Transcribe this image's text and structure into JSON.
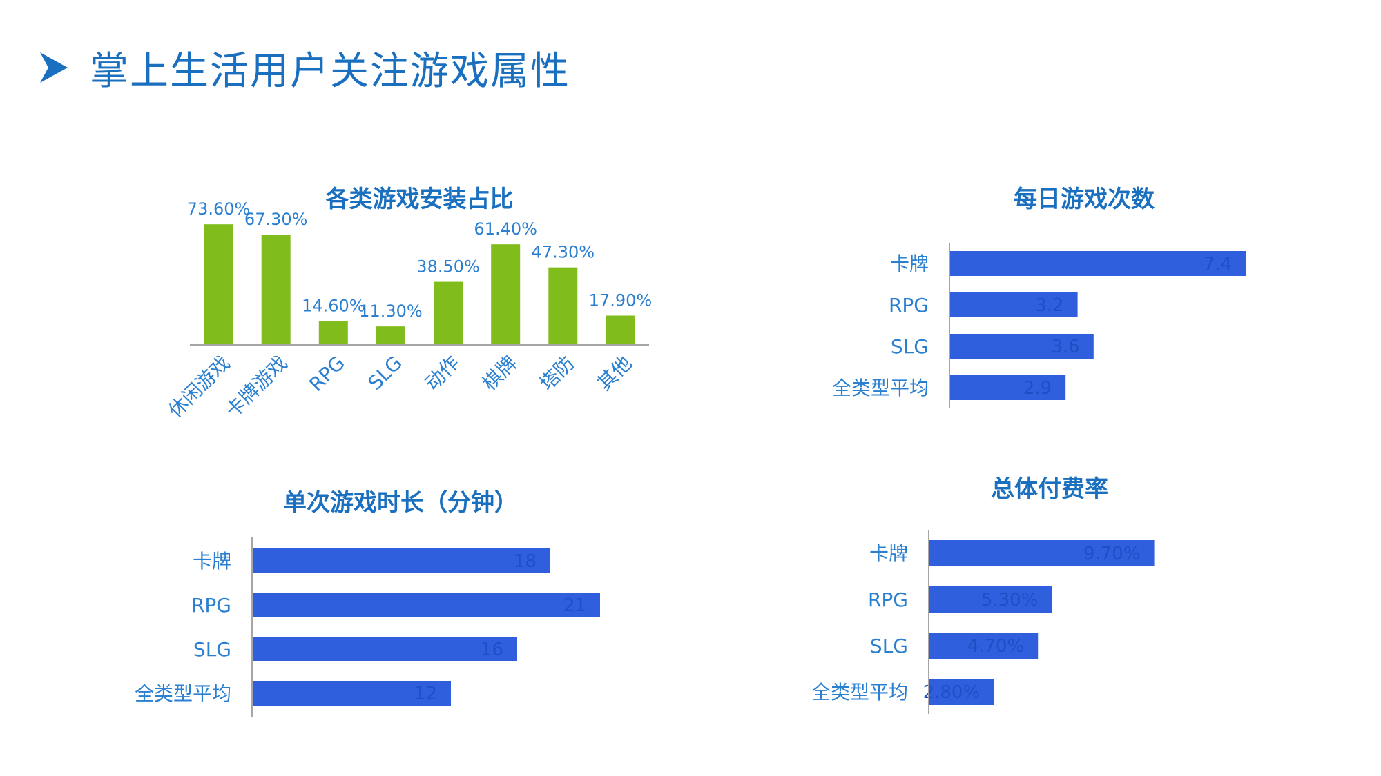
{
  "page": {
    "title": "掌上生活用户关注游戏属性"
  },
  "colors": {
    "title": "#1a6fbf",
    "green_bar": "#80bc1c",
    "blue_bar": "#2f5fdc",
    "axis": "#a6a6a6",
    "label": "#2a7fd0",
    "inner_label": "#1f4fc7"
  },
  "chart_data": [
    {
      "id": "install",
      "type": "bar",
      "title": "各类游戏安装占比",
      "categories": [
        "休闲游戏",
        "卡牌游戏",
        "RPG",
        "SLG",
        "动作",
        "棋牌",
        "塔防",
        "其他"
      ],
      "values": [
        73.6,
        67.3,
        14.6,
        11.3,
        38.5,
        61.4,
        47.3,
        17.9
      ],
      "labels": [
        "73.60%",
        "67.30%",
        "14.60%",
        "11.30%",
        "38.50%",
        "61.40%",
        "47.30%",
        "17.90%"
      ],
      "ylim": [
        0,
        80
      ],
      "grid": false,
      "legend": "none"
    },
    {
      "id": "daily",
      "type": "bar",
      "orientation": "horizontal",
      "title": "每日游戏次数",
      "categories": [
        "卡牌",
        "RPG",
        "SLG",
        "全类型平均"
      ],
      "values": [
        7.4,
        3.2,
        3.6,
        2.9
      ],
      "labels": [
        "7.4",
        "3.2",
        "3.6",
        "2.9"
      ],
      "xlim": [
        0,
        10
      ],
      "grid": false,
      "legend": "none"
    },
    {
      "id": "duration",
      "type": "bar",
      "orientation": "horizontal",
      "title": "单次游戏时长（分钟）",
      "categories": [
        "卡牌",
        "RPG",
        "SLG",
        "全类型平均"
      ],
      "values": [
        18,
        21,
        16,
        12
      ],
      "labels": [
        "18",
        "21",
        "16",
        "12"
      ],
      "xlim": [
        0,
        25
      ],
      "grid": false,
      "legend": "none"
    },
    {
      "id": "payrate",
      "type": "bar",
      "orientation": "horizontal",
      "title": "总体付费率",
      "categories": [
        "卡牌",
        "RPG",
        "SLG",
        "全类型平均"
      ],
      "values": [
        9.7,
        5.3,
        4.7,
        2.8
      ],
      "labels": [
        "9.70%",
        "5.30%",
        "4.70%",
        "2.80%"
      ],
      "xlim": [
        0,
        15
      ],
      "grid": false,
      "legend": "none"
    }
  ]
}
